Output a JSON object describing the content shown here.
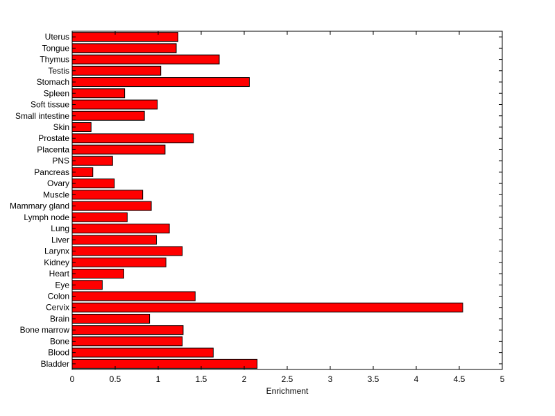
{
  "chart_data": {
    "type": "bar",
    "orientation": "horizontal",
    "title": "",
    "xlabel": "Enrichment",
    "ylabel": "",
    "xlim": [
      0,
      5
    ],
    "xticks": [
      "0",
      "0.5",
      "1",
      "1.5",
      "2",
      "2.5",
      "3",
      "3.5",
      "4",
      "4.5",
      "5"
    ],
    "grid": false,
    "legend": "none",
    "bar_color": "#ff0000",
    "categories": [
      "Bladder",
      "Blood",
      "Bone",
      "Bone marrow",
      "Brain",
      "Cervix",
      "Colon",
      "Eye",
      "Heart",
      "Kidney",
      "Larynx",
      "Liver",
      "Lung",
      "Lymph node",
      "Mammary gland",
      "Muscle",
      "Ovary",
      "Pancreas",
      "PNS",
      "Placenta",
      "Prostate",
      "Skin",
      "Small intestine",
      "Soft tissue",
      "Spleen",
      "Stomach",
      "Testis",
      "Thymus",
      "Tongue",
      "Uterus"
    ],
    "values": [
      2.15,
      1.64,
      1.28,
      1.29,
      0.9,
      4.54,
      1.43,
      0.35,
      0.6,
      1.09,
      1.28,
      0.98,
      1.13,
      0.64,
      0.92,
      0.82,
      0.49,
      0.24,
      0.47,
      1.08,
      1.41,
      0.22,
      0.84,
      0.99,
      0.61,
      2.06,
      1.03,
      1.71,
      1.21,
      1.23
    ]
  }
}
